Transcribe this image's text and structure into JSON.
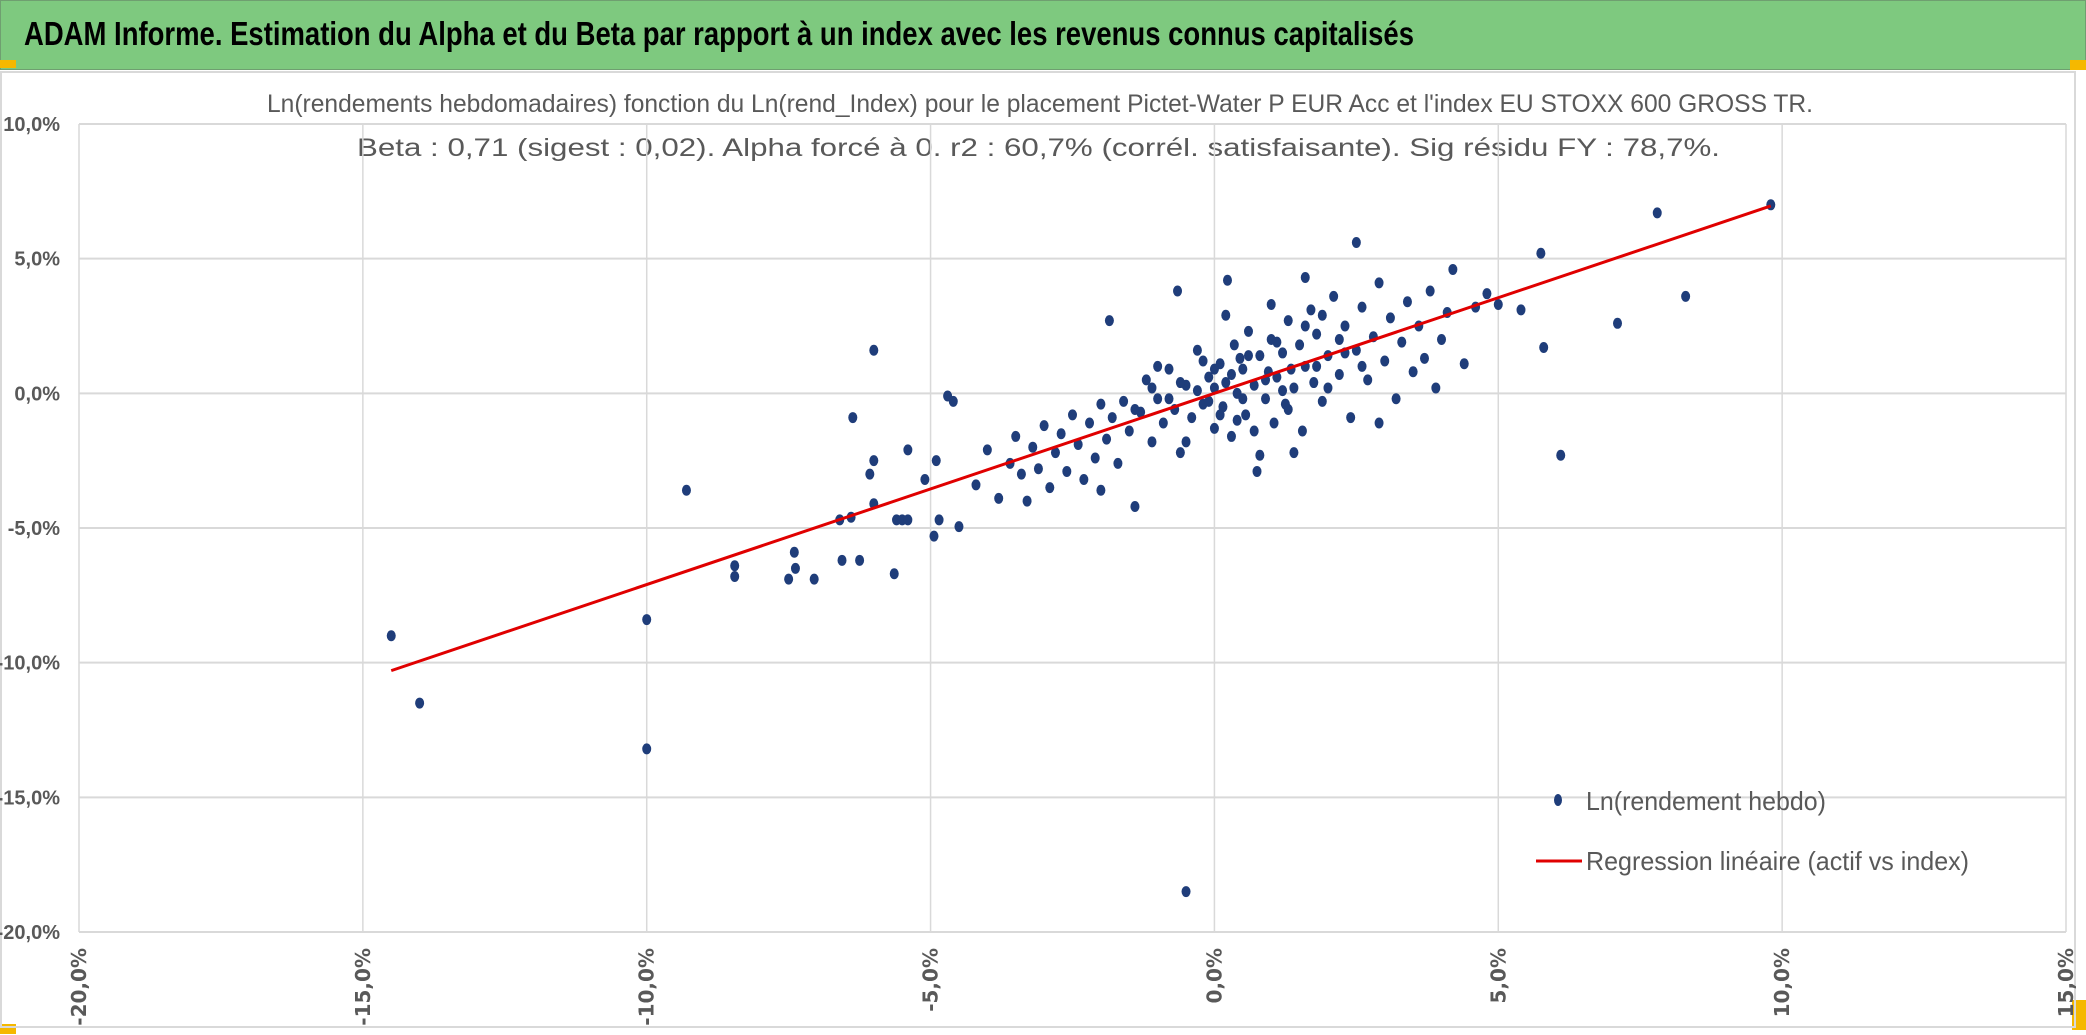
{
  "header": {
    "title": "ADAM Informe. Estimation du Alpha et du Beta par rapport à un index avec les revenus connus capitalisés"
  },
  "colors": {
    "header_bg": "#7ec97f",
    "points": "#1f3d7a",
    "regression": "#e00000",
    "grid": "#d9d9d9",
    "accent": "#f5b800"
  },
  "chart_data": {
    "type": "scatter",
    "title": [
      "Ln(rendements hebdomadaires) fonction du Ln(rend_Index) pour le placement Pictet-Water P EUR Acc et l'index EU STOXX 600 GROSS TR.",
      "Beta : 0,71 (sigest : 0,02). Alpha forcé à 0. r2 : 60,7% (corrél. satisfaisante). Sig résidu FY : 78,7%."
    ],
    "xlabel": "",
    "ylabel": "",
    "xlim": [
      -20,
      15
    ],
    "ylim": [
      -20,
      10
    ],
    "xticks": [
      -20,
      -15,
      -10,
      -5,
      0,
      5,
      10,
      15
    ],
    "xtick_labels": [
      "-20,0%",
      "-15,0%",
      "-10,0%",
      "-5,0%",
      "0,0%",
      "5,0%",
      "10,0%",
      "15,0%"
    ],
    "yticks": [
      10,
      5,
      0,
      -5,
      -10,
      -15,
      -20
    ],
    "ytick_labels": [
      "10,0%",
      "5,0%",
      "0,0%",
      "-5,0%",
      "-10,0%",
      "-15,0%",
      "-20,0%"
    ],
    "grid": true,
    "legend_position": "bottom-right",
    "series": [
      {
        "name": "Ln(rendement hebdo)",
        "type": "scatter",
        "points": [
          [
            -14.5,
            -9.0
          ],
          [
            -14.0,
            -11.5
          ],
          [
            -10.0,
            -8.4
          ],
          [
            -10.0,
            -13.2
          ],
          [
            -9.3,
            -3.6
          ],
          [
            -8.45,
            -6.8
          ],
          [
            -8.45,
            -6.4
          ],
          [
            -7.5,
            -6.9
          ],
          [
            -7.4,
            -5.9
          ],
          [
            -7.38,
            -6.5
          ],
          [
            -7.05,
            -6.9
          ],
          [
            -6.56,
            -6.2
          ],
          [
            -6.25,
            -6.2
          ],
          [
            -6.6,
            -4.7
          ],
          [
            -6.4,
            -4.6
          ],
          [
            -6.37,
            -0.9
          ],
          [
            -6.0,
            1.6
          ],
          [
            -6.0,
            -2.5
          ],
          [
            -6.0,
            -4.1
          ],
          [
            -5.64,
            -6.7
          ],
          [
            -5.6,
            -4.7
          ],
          [
            -5.5,
            -4.7
          ],
          [
            -5.4,
            -4.7
          ],
          [
            -6.07,
            -3.0
          ],
          [
            -4.94,
            -5.3
          ],
          [
            -4.85,
            -4.7
          ],
          [
            -4.5,
            -4.95
          ],
          [
            -4.7,
            -0.1
          ],
          [
            -4.6,
            -0.3
          ],
          [
            -5.4,
            -2.1
          ],
          [
            -5.1,
            -3.2
          ],
          [
            -4.9,
            -2.5
          ],
          [
            8.3,
            3.6
          ],
          [
            9.8,
            7.0
          ],
          [
            7.8,
            6.7
          ],
          [
            7.1,
            2.6
          ],
          [
            5.75,
            5.2
          ],
          [
            5.8,
            1.7
          ],
          [
            6.1,
            -2.3
          ],
          [
            5.4,
            3.1
          ],
          [
            2.5,
            5.6
          ],
          [
            -0.5,
            -18.5
          ],
          [
            -1.85,
            2.7
          ],
          [
            -0.65,
            3.8
          ],
          [
            0.23,
            4.2
          ],
          [
            1.6,
            4.3
          ],
          [
            -4.2,
            -3.4
          ],
          [
            -4.0,
            -2.1
          ],
          [
            -3.8,
            -3.9
          ],
          [
            -3.6,
            -2.6
          ],
          [
            -3.5,
            -1.6
          ],
          [
            -3.4,
            -3.0
          ],
          [
            -3.3,
            -4.0
          ],
          [
            -3.2,
            -2.0
          ],
          [
            -3.1,
            -2.8
          ],
          [
            -3.0,
            -1.2
          ],
          [
            -2.9,
            -3.5
          ],
          [
            -2.8,
            -2.2
          ],
          [
            -2.7,
            -1.5
          ],
          [
            -2.6,
            -2.9
          ],
          [
            -2.5,
            -0.8
          ],
          [
            -2.4,
            -1.9
          ],
          [
            -2.3,
            -3.2
          ],
          [
            -2.2,
            -1.1
          ],
          [
            -2.1,
            -2.4
          ],
          [
            -2.0,
            -0.4
          ],
          [
            -1.9,
            -1.7
          ],
          [
            -1.8,
            -0.9
          ],
          [
            -1.7,
            -2.6
          ],
          [
            -1.6,
            -0.3
          ],
          [
            -1.5,
            -1.4
          ],
          [
            -1.4,
            -4.2
          ],
          [
            -1.3,
            -0.7
          ],
          [
            -1.2,
            0.5
          ],
          [
            -1.1,
            -1.8
          ],
          [
            -1.0,
            -0.2
          ],
          [
            -0.9,
            -1.1
          ],
          [
            -0.8,
            0.9
          ],
          [
            -0.7,
            -0.6
          ],
          [
            -0.6,
            -2.2
          ],
          [
            -0.5,
            0.3
          ],
          [
            -0.4,
            -0.9
          ],
          [
            -0.3,
            1.6
          ],
          [
            -0.2,
            -0.4
          ],
          [
            -0.1,
            0.6
          ],
          [
            0.0,
            -1.3
          ],
          [
            0.0,
            0.2
          ],
          [
            0.1,
            1.1
          ],
          [
            0.15,
            -0.5
          ],
          [
            0.2,
            0.4
          ],
          [
            0.3,
            -1.6
          ],
          [
            0.35,
            1.8
          ],
          [
            0.4,
            0.0
          ],
          [
            0.5,
            0.9
          ],
          [
            0.55,
            -0.8
          ],
          [
            0.6,
            2.3
          ],
          [
            0.7,
            0.3
          ],
          [
            0.75,
            -2.9
          ],
          [
            0.8,
            1.4
          ],
          [
            0.9,
            -0.2
          ],
          [
            0.95,
            0.8
          ],
          [
            1.0,
            2.0
          ],
          [
            1.05,
            -1.1
          ],
          [
            1.1,
            0.6
          ],
          [
            1.2,
            1.5
          ],
          [
            1.25,
            -0.4
          ],
          [
            1.3,
            2.7
          ],
          [
            1.35,
            0.9
          ],
          [
            1.4,
            0.2
          ],
          [
            1.5,
            1.8
          ],
          [
            1.55,
            -1.4
          ],
          [
            1.6,
            1.0
          ],
          [
            1.7,
            3.1
          ],
          [
            1.75,
            0.4
          ],
          [
            1.8,
            2.2
          ],
          [
            1.9,
            -0.3
          ],
          [
            2.0,
            1.4
          ],
          [
            2.1,
            3.6
          ],
          [
            2.2,
            0.7
          ],
          [
            2.3,
            2.5
          ],
          [
            2.4,
            -0.9
          ],
          [
            2.5,
            1.6
          ],
          [
            2.6,
            3.2
          ],
          [
            2.7,
            0.5
          ],
          [
            2.8,
            2.1
          ],
          [
            2.9,
            4.1
          ],
          [
            3.0,
            1.2
          ],
          [
            3.1,
            2.8
          ],
          [
            3.2,
            -0.2
          ],
          [
            3.3,
            1.9
          ],
          [
            3.4,
            3.4
          ],
          [
            3.5,
            0.8
          ],
          [
            3.6,
            2.5
          ],
          [
            3.7,
            1.3
          ],
          [
            3.8,
            3.8
          ],
          [
            3.9,
            0.2
          ],
          [
            4.0,
            2.0
          ],
          [
            4.1,
            3.0
          ],
          [
            4.2,
            4.6
          ],
          [
            4.4,
            1.1
          ],
          [
            4.6,
            3.2
          ],
          [
            4.8,
            3.7
          ],
          [
            5.0,
            3.3
          ],
          [
            -1.0,
            1.0
          ],
          [
            -0.5,
            -1.8
          ],
          [
            0.2,
            2.9
          ],
          [
            0.8,
            -2.3
          ],
          [
            1.4,
            -2.2
          ],
          [
            2.9,
            -1.1
          ],
          [
            -2.0,
            -3.6
          ],
          [
            1.0,
            3.3
          ],
          [
            0.5,
            -0.2
          ],
          [
            0.0,
            0.9
          ],
          [
            -0.3,
            0.1
          ],
          [
            1.2,
            0.1
          ],
          [
            0.6,
            1.4
          ],
          [
            1.8,
            1.0
          ],
          [
            2.3,
            1.5
          ],
          [
            0.3,
            0.7
          ],
          [
            -0.8,
            -0.2
          ],
          [
            1.6,
            2.5
          ],
          [
            2.0,
            0.2
          ],
          [
            -1.4,
            -0.6
          ],
          [
            -0.1,
            -0.3
          ],
          [
            0.9,
            0.5
          ],
          [
            1.1,
            1.9
          ],
          [
            0.4,
            -1.0
          ],
          [
            -0.2,
            1.2
          ],
          [
            0.7,
            -1.4
          ],
          [
            1.3,
            -0.6
          ],
          [
            -0.6,
            0.4
          ],
          [
            2.6,
            1.0
          ],
          [
            1.9,
            2.9
          ],
          [
            0.1,
            -0.8
          ],
          [
            -1.1,
            0.2
          ],
          [
            2.2,
            2.0
          ],
          [
            0.45,
            1.3
          ]
        ]
      },
      {
        "name": "Regression linéaire (actif vs index)",
        "type": "line",
        "slope": 0.71,
        "intercept": 0,
        "x_range": [
          -14.5,
          9.8
        ]
      }
    ]
  }
}
